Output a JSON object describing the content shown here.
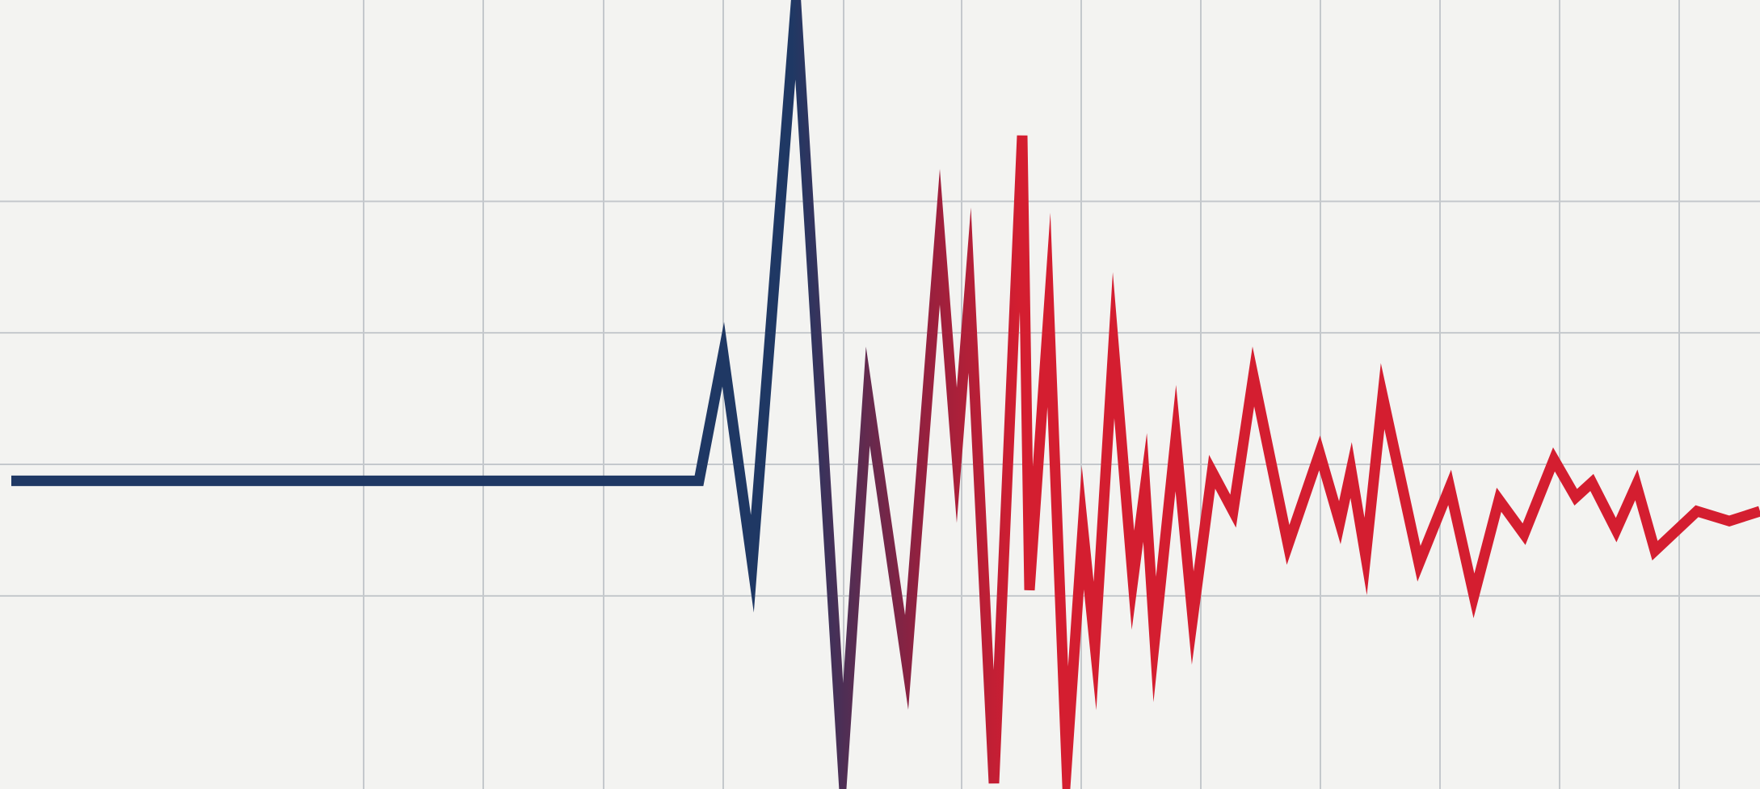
{
  "chart_data": {
    "type": "line",
    "title": "",
    "xlabel": "",
    "ylabel": "",
    "grid": true,
    "legend": "none",
    "xlim": [
      0,
      2178
    ],
    "ylim": [
      -375,
      585
    ],
    "x_gridlines": [
      450,
      598,
      747,
      895,
      1044,
      1190,
      1338,
      1486,
      1634,
      1782,
      1930,
      2078
    ],
    "y_gridlines": [
      340,
      180,
      20,
      -140
    ],
    "series": [
      {
        "points": [
          [
            14,
            0
          ],
          [
            865,
            0
          ],
          [
            895,
            154
          ],
          [
            931,
            -101
          ],
          [
            985,
            580
          ],
          [
            1043,
            -345
          ],
          [
            1074,
            103
          ],
          [
            1122,
            -221
          ],
          [
            1163,
            297
          ],
          [
            1184,
            31
          ],
          [
            1200,
            232
          ],
          [
            1230,
            -368
          ],
          [
            1265,
            420
          ],
          [
            1274,
            -133
          ],
          [
            1298,
            208
          ],
          [
            1320,
            -345
          ],
          [
            1340,
            -57
          ],
          [
            1355,
            -201
          ],
          [
            1378,
            165
          ],
          [
            1402,
            -121
          ],
          [
            1417,
            -8
          ],
          [
            1429,
            -193
          ],
          [
            1455,
            52
          ],
          [
            1476,
            -167
          ],
          [
            1500,
            11
          ],
          [
            1526,
            -37
          ],
          [
            1551,
            127
          ],
          [
            1594,
            -78
          ],
          [
            1633,
            34
          ],
          [
            1658,
            -51
          ],
          [
            1672,
            13
          ],
          [
            1690,
            -92
          ],
          [
            1711,
            103
          ],
          [
            1756,
            -101
          ],
          [
            1794,
            -8
          ],
          [
            1824,
            -140
          ],
          [
            1855,
            -23
          ],
          [
            1886,
            -65
          ],
          [
            1923,
            26
          ],
          [
            1950,
            -20
          ],
          [
            1970,
            -2
          ],
          [
            2000,
            -60
          ],
          [
            2025,
            -5
          ],
          [
            2048,
            -85
          ],
          [
            2100,
            -37
          ],
          [
            2140,
            -49
          ],
          [
            2178,
            -37
          ]
        ]
      }
    ],
    "colors": {
      "background": "#f3f3f1",
      "grid": "#c4c8cc",
      "line_start": "#1f3864",
      "line_mid": "#8f2140",
      "line_end": "#d41e30"
    }
  }
}
